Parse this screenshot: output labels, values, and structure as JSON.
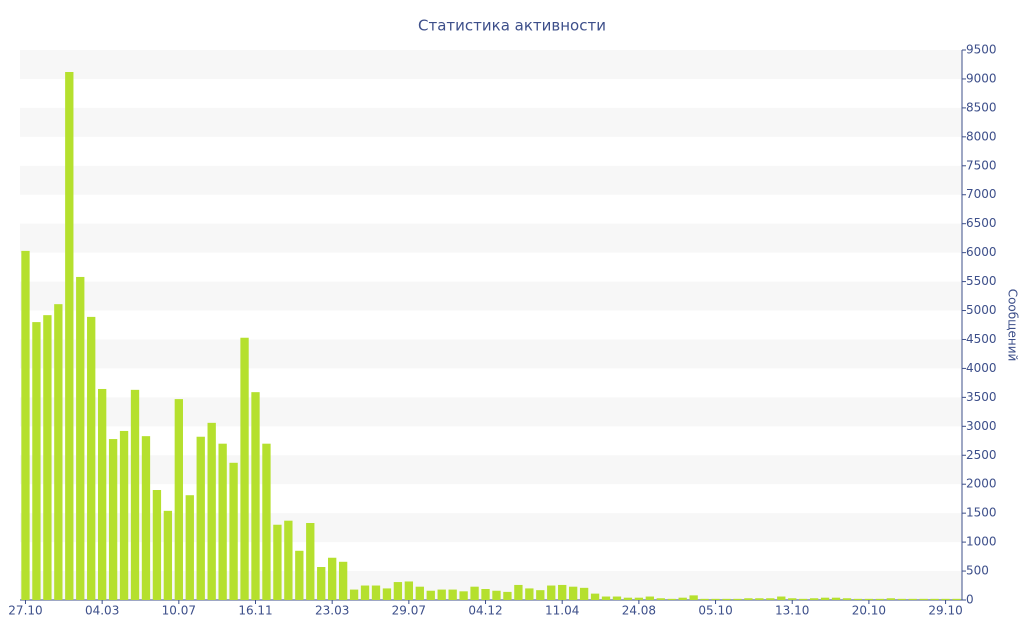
{
  "chart_data": {
    "type": "bar",
    "title": "Статистика активности",
    "y_label": "Сообщений",
    "categories": [
      "27.10",
      null,
      null,
      null,
      null,
      null,
      null,
      "04.03",
      null,
      null,
      null,
      null,
      null,
      null,
      "10.07",
      null,
      null,
      null,
      null,
      null,
      null,
      "16.11",
      null,
      null,
      null,
      null,
      null,
      null,
      "23.03",
      null,
      null,
      null,
      null,
      null,
      null,
      "29.07",
      null,
      null,
      null,
      null,
      null,
      null,
      "04.12",
      null,
      null,
      null,
      null,
      null,
      null,
      "11.04",
      null,
      null,
      null,
      null,
      null,
      null,
      "24.08",
      null,
      null,
      null,
      null,
      null,
      null,
      "05.10",
      null,
      null,
      null,
      null,
      null,
      null,
      "13.10",
      null,
      null,
      null,
      null,
      null,
      null,
      "20.10",
      null,
      null,
      null,
      null,
      null,
      null,
      "29.10",
      null
    ],
    "values": [
      6030,
      4800,
      4920,
      5110,
      9120,
      5580,
      4890,
      3645,
      2780,
      2920,
      3630,
      2830,
      1900,
      1540,
      3470,
      1810,
      2820,
      3060,
      2700,
      2370,
      4530,
      3590,
      2700,
      1300,
      1370,
      850,
      1330,
      570,
      730,
      660,
      180,
      250,
      250,
      200,
      310,
      320,
      230,
      160,
      180,
      180,
      150,
      230,
      190,
      160,
      140,
      260,
      200,
      170,
      250,
      260,
      230,
      210,
      110,
      60,
      60,
      40,
      40,
      60,
      30,
      20,
      40,
      80,
      20,
      20,
      20,
      20,
      30,
      30,
      30,
      60,
      30,
      20,
      30,
      40,
      40,
      30,
      20,
      20,
      20,
      30,
      20,
      20,
      20,
      20,
      20,
      20
    ],
    "color": "#b5e02e",
    "ylim": [
      0,
      9500
    ],
    "yticks": [
      0,
      500,
      1000,
      1500,
      2000,
      2500,
      3000,
      3500,
      4000,
      4500,
      5000,
      5500,
      6000,
      6500,
      7000,
      7500,
      8000,
      8500,
      9000,
      9500
    ],
    "y_axis_side": "right"
  }
}
